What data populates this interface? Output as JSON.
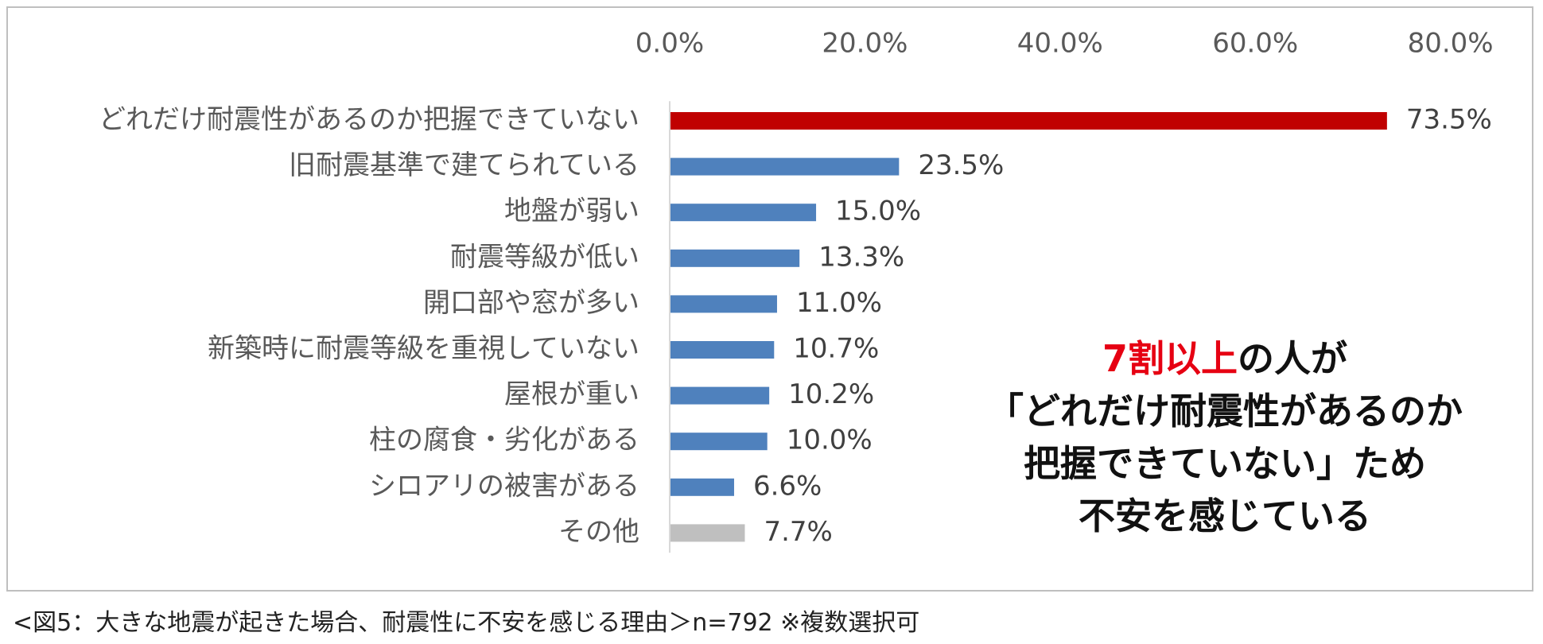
{
  "chart_data": {
    "type": "bar",
    "orientation": "horizontal",
    "categories": [
      "どれだけ耐震性があるのか把握できていない",
      "旧耐震基準で建てられている",
      "地盤が弱い",
      "耐震等級が低い",
      "開口部や窓が多い",
      "新築時に耐震等級を重視していない",
      "屋根が重い",
      "柱の腐食・劣化がある",
      "シロアリの被害がある",
      "その他"
    ],
    "values": [
      73.5,
      23.5,
      15.0,
      13.3,
      11.0,
      10.7,
      10.2,
      10.0,
      6.6,
      7.7
    ],
    "value_labels": [
      "73.5%",
      "23.5%",
      "15.0%",
      "13.3%",
      "11.0%",
      "10.7%",
      "10.2%",
      "10.0%",
      "6.6%",
      "7.7%"
    ],
    "bar_colors": [
      "#c00000",
      "#4f81bd",
      "#4f81bd",
      "#4f81bd",
      "#4f81bd",
      "#4f81bd",
      "#4f81bd",
      "#4f81bd",
      "#4f81bd",
      "#bfbfbf"
    ],
    "xlim": [
      0,
      80
    ],
    "x_ticks": [
      0,
      20,
      40,
      60,
      80
    ],
    "x_tick_labels": [
      "0.0%",
      "20.0%",
      "40.0%",
      "60.0%",
      "80.0%"
    ],
    "axis_position": "top",
    "grid": false,
    "legend": "none"
  },
  "callout": {
    "line1_highlight": "7割以上",
    "line1_rest": "の人が",
    "line2": "「どれだけ耐震性があるのか",
    "line3": "把握できていない」ため",
    "line4": "不安を感じている"
  },
  "caption": "<図5：大きな地震が起きた場合、耐震性に不安を感じる理由＞n=792 ※複数選択可"
}
